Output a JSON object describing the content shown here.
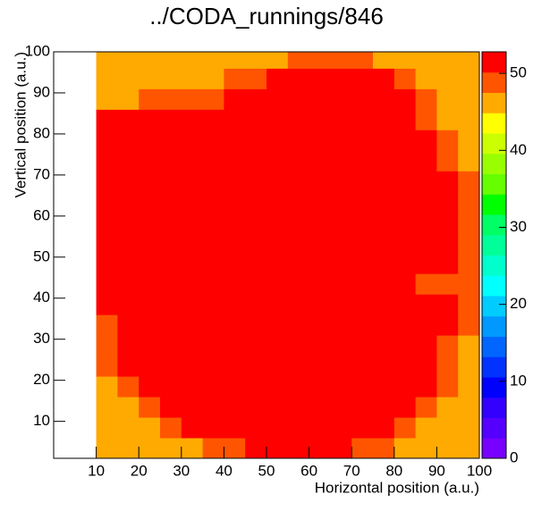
{
  "chart_data": {
    "type": "heatmap",
    "title": "../CODA_runnings/846",
    "x_label": "Horizontal position (a.u.)",
    "y_label": "Vertical position (a.u.)",
    "xbins": [
      0,
      5,
      10,
      15,
      20,
      25,
      30,
      35,
      40,
      45,
      50,
      55,
      60,
      65,
      70,
      75,
      80,
      85,
      90,
      95,
      100
    ],
    "ybins": [
      1,
      6,
      11,
      16,
      21,
      26,
      31,
      36,
      41,
      46,
      51,
      56,
      61,
      66,
      71,
      76,
      81,
      86,
      91,
      96,
      100
    ],
    "xlim": [
      0,
      100
    ],
    "ylim": [
      1,
      100
    ],
    "xticks": [
      10,
      20,
      30,
      40,
      50,
      60,
      70,
      80,
      90,
      100
    ],
    "yticks": [
      10,
      20,
      30,
      40,
      50,
      60,
      70,
      80,
      90,
      100
    ],
    "zlim": [
      0,
      52.8
    ],
    "zticks": [
      0,
      10,
      20,
      30,
      40,
      50
    ],
    "palette": [
      "#7700ff",
      "#5500ff",
      "#3300ff",
      "#0000ff",
      "#0033ff",
      "#0066ff",
      "#0099ff",
      "#00ccff",
      "#00ffff",
      "#00ffcc",
      "#00ff99",
      "#00ff66",
      "#00ff00",
      "#66ff00",
      "#99ff00",
      "#ccff00",
      "#ffff00",
      "#ffaa00",
      "#ff5500",
      "#ff0000"
    ],
    "z": [
      [
        null,
        null,
        46,
        46,
        46,
        46,
        46,
        49,
        49,
        52,
        52,
        52,
        52,
        52,
        49,
        49,
        46,
        46,
        46,
        46
      ],
      [
        null,
        null,
        46,
        46,
        46,
        49,
        52,
        52,
        52,
        52,
        52,
        52,
        52,
        52,
        52,
        52,
        49,
        46,
        46,
        46
      ],
      [
        null,
        null,
        46,
        46,
        49,
        52,
        52,
        52,
        52,
        52,
        52,
        52,
        52,
        52,
        52,
        52,
        52,
        49,
        46,
        46
      ],
      [
        null,
        null,
        46,
        49,
        52,
        52,
        52,
        52,
        52,
        52,
        52,
        52,
        52,
        52,
        52,
        52,
        52,
        52,
        49,
        46
      ],
      [
        null,
        null,
        49,
        52,
        52,
        52,
        52,
        52,
        52,
        52,
        52,
        52,
        52,
        52,
        52,
        52,
        52,
        52,
        49,
        46
      ],
      [
        null,
        null,
        49,
        52,
        52,
        52,
        52,
        52,
        52,
        52,
        52,
        52,
        52,
        52,
        52,
        52,
        52,
        52,
        49,
        46
      ],
      [
        null,
        null,
        49,
        52,
        52,
        52,
        52,
        52,
        52,
        52,
        52,
        52,
        52,
        52,
        52,
        52,
        52,
        52,
        52,
        49
      ],
      [
        null,
        null,
        52,
        52,
        52,
        52,
        52,
        52,
        52,
        52,
        52,
        52,
        52,
        52,
        52,
        52,
        52,
        52,
        52,
        49
      ],
      [
        null,
        null,
        52,
        52,
        52,
        52,
        52,
        52,
        52,
        52,
        52,
        52,
        52,
        52,
        52,
        52,
        52,
        49,
        49,
        49
      ],
      [
        null,
        null,
        52,
        52,
        52,
        52,
        52,
        52,
        52,
        52,
        52,
        52,
        52,
        52,
        52,
        52,
        52,
        52,
        52,
        49
      ],
      [
        null,
        null,
        52,
        52,
        52,
        52,
        52,
        52,
        52,
        52,
        52,
        52,
        52,
        52,
        52,
        52,
        52,
        52,
        52,
        49
      ],
      [
        null,
        null,
        52,
        52,
        52,
        52,
        52,
        52,
        52,
        52,
        52,
        52,
        52,
        52,
        52,
        52,
        52,
        52,
        52,
        49
      ],
      [
        null,
        null,
        52,
        52,
        52,
        52,
        52,
        52,
        52,
        52,
        52,
        52,
        52,
        52,
        52,
        52,
        52,
        52,
        52,
        49
      ],
      [
        null,
        null,
        52,
        52,
        52,
        52,
        52,
        52,
        52,
        52,
        52,
        52,
        52,
        52,
        52,
        52,
        52,
        52,
        52,
        49
      ],
      [
        null,
        null,
        52,
        52,
        52,
        52,
        52,
        52,
        52,
        52,
        52,
        52,
        52,
        52,
        52,
        52,
        52,
        52,
        49,
        46
      ],
      [
        null,
        null,
        52,
        52,
        52,
        52,
        52,
        52,
        52,
        52,
        52,
        52,
        52,
        52,
        52,
        52,
        52,
        52,
        49,
        46
      ],
      [
        null,
        null,
        52,
        52,
        52,
        52,
        52,
        52,
        52,
        52,
        52,
        52,
        52,
        52,
        52,
        52,
        52,
        49,
        46,
        46
      ],
      [
        null,
        null,
        46,
        46,
        49,
        49,
        49,
        49,
        52,
        52,
        52,
        52,
        52,
        52,
        52,
        52,
        52,
        49,
        46,
        46
      ],
      [
        null,
        null,
        46,
        46,
        46,
        46,
        46,
        46,
        49,
        49,
        52,
        52,
        52,
        52,
        52,
        52,
        49,
        46,
        46,
        46
      ],
      [
        null,
        null,
        46,
        46,
        46,
        46,
        46,
        46,
        46,
        46,
        46,
        49,
        49,
        49,
        49,
        46,
        46,
        46,
        46,
        46
      ]
    ]
  }
}
